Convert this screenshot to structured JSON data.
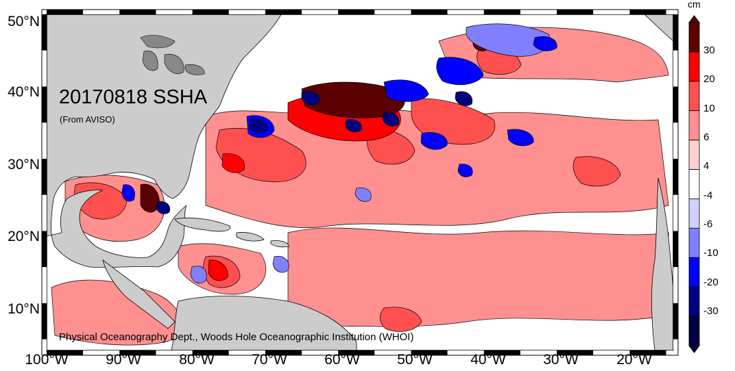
{
  "map": {
    "title": "20170818 SSHA",
    "subtitle": "(From AVISO)",
    "credit": "Physical Oceanography Dept., Woods Hole Oceanographic Institution (WHOI)",
    "lat_labels": [
      "50°N",
      "40°N",
      "30°N",
      "20°N",
      "10°N"
    ],
    "lon_labels": [
      "100°W",
      "90°W",
      "80°W",
      "70°W",
      "60°W",
      "50°W",
      "40°W",
      "30°W",
      "20°W"
    ],
    "land_color": "#cccccc",
    "ocean_color": "#ffffff"
  },
  "colorbar": {
    "unit": "cm",
    "labels": [
      "30",
      "20",
      "10",
      "6",
      "4",
      "-4",
      "-6",
      "-10",
      "-20",
      "-30"
    ],
    "colors": [
      "#5a0000",
      "#ff0000",
      "#ff5050",
      "#ff9090",
      "#ffd0d0",
      "#ffffff",
      "#d0d0ff",
      "#8080ff",
      "#0000ff",
      "#000080",
      "#000040"
    ]
  }
}
